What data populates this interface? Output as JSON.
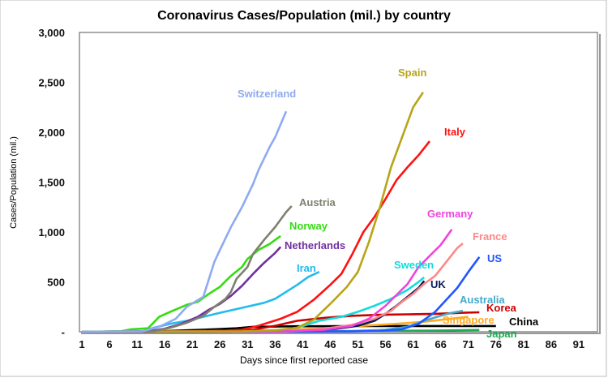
{
  "chart_data": {
    "type": "line",
    "title": "Coronavirus Cases/Population (mil.) by country",
    "xlabel": "Days since first reported case",
    "ylabel": "Cases/Population (mil.)",
    "xlim": [
      0.5,
      95
    ],
    "ylim": [
      0,
      3000
    ],
    "x_ticks": [
      "1",
      "6",
      "11",
      "16",
      "21",
      "26",
      "31",
      "36",
      "41",
      "46",
      "51",
      "56",
      "61",
      "66",
      "71",
      "76",
      "81",
      "86",
      "91"
    ],
    "y_ticks": [
      "-",
      "500",
      "1,000",
      "1,500",
      "2,000",
      "2,500",
      "3,000"
    ],
    "grid": false,
    "legend": "direct labels at line ends",
    "series": [
      {
        "name": "Switzerland",
        "color": "#8FAAF0",
        "points": [
          [
            1,
            0
          ],
          [
            12,
            5
          ],
          [
            15,
            50
          ],
          [
            18,
            130
          ],
          [
            20,
            250
          ],
          [
            23,
            350
          ],
          [
            25,
            700
          ],
          [
            26,
            820
          ],
          [
            28,
            1050
          ],
          [
            30,
            1250
          ],
          [
            32,
            1480
          ],
          [
            33,
            1620
          ],
          [
            35,
            1850
          ],
          [
            36,
            1950
          ],
          [
            38,
            2210
          ]
        ]
      },
      {
        "name": "Austria",
        "color": "#7F7F70",
        "points": [
          [
            1,
            0
          ],
          [
            14,
            5
          ],
          [
            17,
            40
          ],
          [
            20,
            90
          ],
          [
            23,
            160
          ],
          [
            25,
            250
          ],
          [
            27,
            330
          ],
          [
            28,
            400
          ],
          [
            29,
            530
          ],
          [
            31,
            650
          ],
          [
            32,
            780
          ],
          [
            34,
            920
          ],
          [
            36,
            1050
          ],
          [
            38,
            1200
          ],
          [
            39,
            1260
          ]
        ]
      },
      {
        "name": "Norway",
        "color": "#33DD11",
        "points": [
          [
            1,
            0
          ],
          [
            8,
            5
          ],
          [
            10,
            25
          ],
          [
            13,
            35
          ],
          [
            15,
            150
          ],
          [
            17,
            200
          ],
          [
            20,
            270
          ],
          [
            22,
            300
          ],
          [
            24,
            380
          ],
          [
            26,
            450
          ],
          [
            28,
            560
          ],
          [
            30,
            650
          ],
          [
            31,
            730
          ],
          [
            33,
            820
          ],
          [
            35,
            880
          ],
          [
            37,
            960
          ]
        ]
      },
      {
        "name": "Netherlands",
        "color": "#7030A0",
        "points": [
          [
            1,
            0
          ],
          [
            13,
            5
          ],
          [
            16,
            30
          ],
          [
            19,
            80
          ],
          [
            22,
            150
          ],
          [
            24,
            220
          ],
          [
            26,
            280
          ],
          [
            28,
            360
          ],
          [
            30,
            460
          ],
          [
            32,
            580
          ],
          [
            34,
            690
          ],
          [
            36,
            790
          ],
          [
            37,
            850
          ]
        ]
      },
      {
        "name": "Iran",
        "color": "#22BBEE",
        "points": [
          [
            1,
            0
          ],
          [
            12,
            5
          ],
          [
            14,
            40
          ],
          [
            17,
            80
          ],
          [
            20,
            110
          ],
          [
            23,
            150
          ],
          [
            26,
            190
          ],
          [
            30,
            240
          ],
          [
            34,
            290
          ],
          [
            36,
            330
          ],
          [
            38,
            400
          ],
          [
            40,
            470
          ],
          [
            42,
            550
          ],
          [
            44,
            600
          ]
        ]
      },
      {
        "name": "Spain",
        "color": "#B8A418",
        "points": [
          [
            1,
            0
          ],
          [
            30,
            5
          ],
          [
            36,
            15
          ],
          [
            40,
            40
          ],
          [
            43,
            120
          ],
          [
            46,
            280
          ],
          [
            49,
            450
          ],
          [
            51,
            600
          ],
          [
            53,
            900
          ],
          [
            55,
            1250
          ],
          [
            57,
            1650
          ],
          [
            59,
            1950
          ],
          [
            61,
            2250
          ],
          [
            62.8,
            2400
          ]
        ]
      },
      {
        "name": "Italy",
        "color": "#FF1111",
        "points": [
          [
            1,
            0
          ],
          [
            25,
            5
          ],
          [
            30,
            20
          ],
          [
            33,
            60
          ],
          [
            37,
            130
          ],
          [
            40,
            200
          ],
          [
            43,
            320
          ],
          [
            46,
            470
          ],
          [
            48,
            580
          ],
          [
            50,
            780
          ],
          [
            52,
            1000
          ],
          [
            54,
            1150
          ],
          [
            56,
            1330
          ],
          [
            58,
            1520
          ],
          [
            60,
            1650
          ],
          [
            62,
            1770
          ],
          [
            64,
            1910
          ]
        ]
      },
      {
        "name": "Germany",
        "color": "#EE44DD",
        "points": [
          [
            1,
            0
          ],
          [
            38,
            5
          ],
          [
            45,
            20
          ],
          [
            50,
            60
          ],
          [
            53,
            130
          ],
          [
            56,
            260
          ],
          [
            58,
            370
          ],
          [
            60,
            480
          ],
          [
            62,
            650
          ],
          [
            64,
            760
          ],
          [
            66,
            870
          ],
          [
            68,
            1025
          ]
        ]
      },
      {
        "name": "France",
        "color": "#FF8888",
        "points": [
          [
            1,
            0
          ],
          [
            38,
            5
          ],
          [
            45,
            30
          ],
          [
            50,
            70
          ],
          [
            54,
            130
          ],
          [
            57,
            210
          ],
          [
            59,
            300
          ],
          [
            61,
            380
          ],
          [
            63,
            480
          ],
          [
            65,
            560
          ],
          [
            67,
            700
          ],
          [
            69,
            840
          ],
          [
            70,
            885
          ]
        ]
      },
      {
        "name": "US",
        "color": "#2255FF",
        "points": [
          [
            1,
            0
          ],
          [
            50,
            3
          ],
          [
            55,
            8
          ],
          [
            59,
            25
          ],
          [
            62,
            80
          ],
          [
            65,
            200
          ],
          [
            67,
            320
          ],
          [
            69,
            440
          ],
          [
            71,
            600
          ],
          [
            73,
            750
          ]
        ]
      },
      {
        "name": "Sweden",
        "color": "#11DDDD",
        "points": [
          [
            1,
            0
          ],
          [
            35,
            5
          ],
          [
            40,
            40
          ],
          [
            44,
            110
          ],
          [
            48,
            150
          ],
          [
            51,
            200
          ],
          [
            54,
            260
          ],
          [
            57,
            330
          ],
          [
            60,
            420
          ],
          [
            62,
            500
          ],
          [
            63,
            545
          ]
        ]
      },
      {
        "name": "UK",
        "color": "#0A1A5A",
        "points": [
          [
            1,
            0
          ],
          [
            35,
            3
          ],
          [
            42,
            10
          ],
          [
            47,
            30
          ],
          [
            51,
            60
          ],
          [
            54,
            110
          ],
          [
            56,
            180
          ],
          [
            58,
            260
          ],
          [
            60,
            350
          ],
          [
            62,
            440
          ],
          [
            63,
            510
          ]
        ]
      },
      {
        "name": "Australia",
        "color": "#44AACC",
        "points": [
          [
            1,
            0
          ],
          [
            40,
            3
          ],
          [
            50,
            8
          ],
          [
            56,
            20
          ],
          [
            60,
            50
          ],
          [
            63,
            110
          ],
          [
            66,
            160
          ],
          [
            68,
            190
          ],
          [
            70,
            210
          ]
        ]
      },
      {
        "name": "Korea",
        "color": "#CC0000",
        "points": [
          [
            1,
            0
          ],
          [
            28,
            2
          ],
          [
            32,
            20
          ],
          [
            36,
            60
          ],
          [
            40,
            110
          ],
          [
            45,
            140
          ],
          [
            50,
            160
          ],
          [
            55,
            170
          ],
          [
            60,
            175
          ],
          [
            65,
            180
          ],
          [
            70,
            190
          ],
          [
            73,
            195
          ]
        ]
      },
      {
        "name": "Singapore",
        "color": "#FFAA22",
        "points": [
          [
            1,
            0
          ],
          [
            20,
            5
          ],
          [
            35,
            15
          ],
          [
            45,
            35
          ],
          [
            52,
            60
          ],
          [
            58,
            80
          ],
          [
            63,
            100
          ],
          [
            67,
            125
          ],
          [
            71,
            150
          ]
        ]
      },
      {
        "name": "China",
        "color": "#000000",
        "points": [
          [
            1,
            0
          ],
          [
            15,
            5
          ],
          [
            20,
            15
          ],
          [
            25,
            25
          ],
          [
            29,
            35
          ],
          [
            32,
            50
          ],
          [
            40,
            55
          ],
          [
            50,
            57
          ],
          [
            60,
            58
          ],
          [
            70,
            58
          ],
          [
            76,
            58
          ]
        ]
      },
      {
        "name": "Japan",
        "color": "#22AA55",
        "points": [
          [
            1,
            0
          ],
          [
            20,
            2
          ],
          [
            40,
            5
          ],
          [
            55,
            8
          ],
          [
            65,
            12
          ],
          [
            73,
            18
          ]
        ]
      }
    ]
  }
}
